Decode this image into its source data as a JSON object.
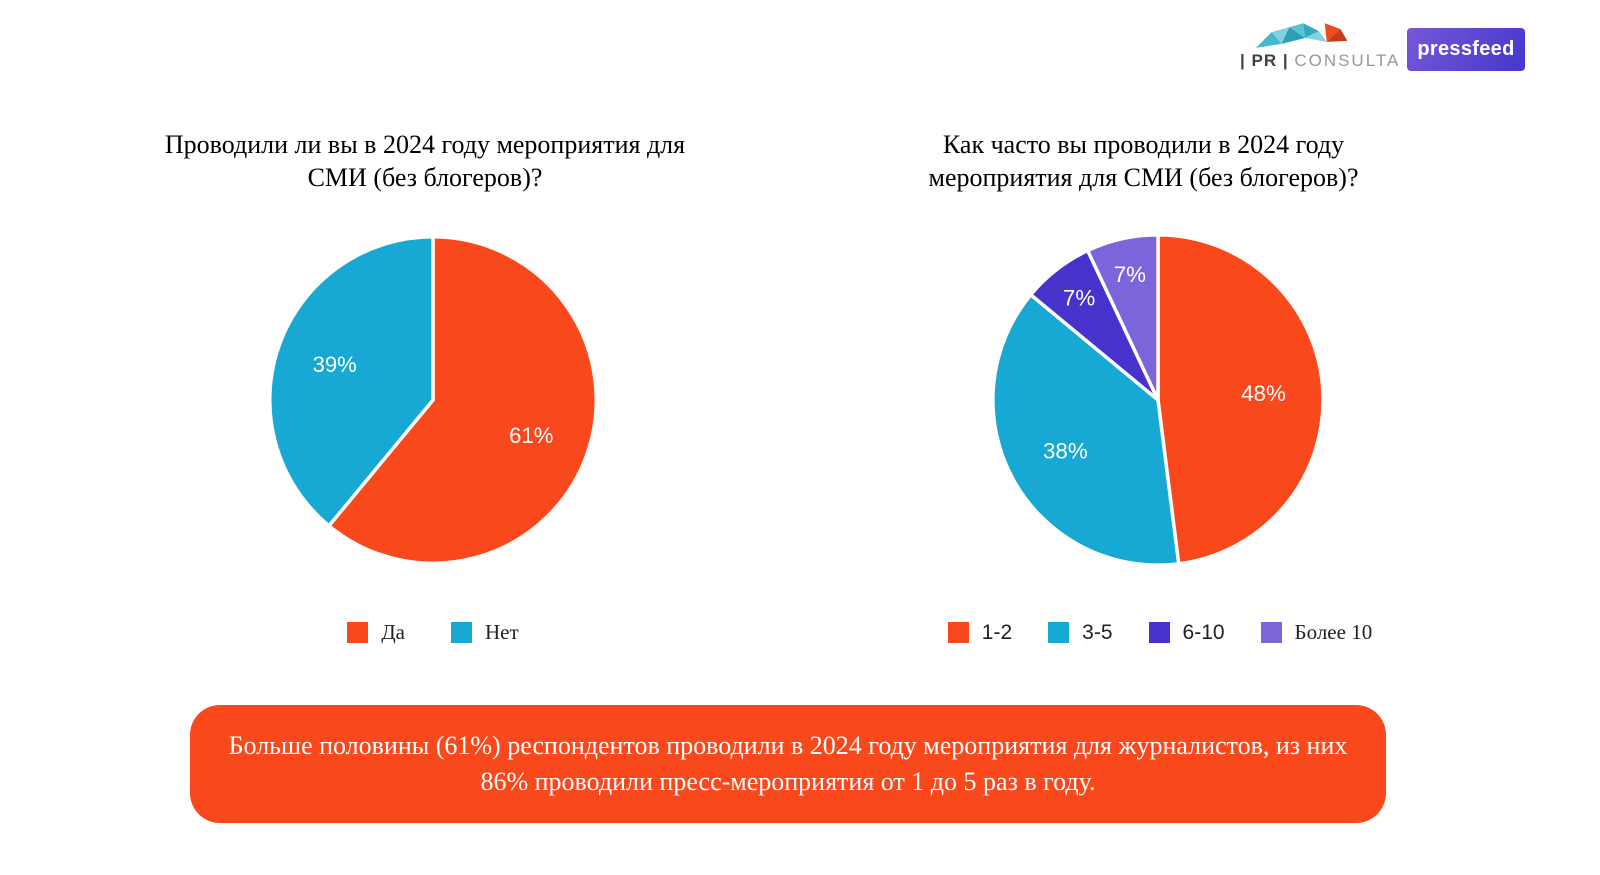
{
  "header": {
    "pr_consulta": {
      "pr_block": "| PR |",
      "name": "CONSULTA"
    },
    "pressfeed": {
      "label": "pressfeed",
      "bg_top": "#7857D8",
      "bg_bottom": "#4338CE"
    }
  },
  "chart_data": [
    {
      "type": "pie",
      "title": "Проводили ли вы в 2024 году мероприятия для СМИ (без блогеров)?",
      "labels": [
        "Да",
        "Нет"
      ],
      "values": [
        61,
        39
      ],
      "data_labels": [
        "61%",
        "39%"
      ],
      "colors": [
        "#F8481C",
        "#17A9D4"
      ],
      "start_angle_deg": 0,
      "direction": "clockwise",
      "legend_position": "bottom"
    },
    {
      "type": "pie",
      "title": "Как часто вы проводили в 2024 году мероприятия для СМИ (без блогеров)?",
      "labels": [
        "1-2",
        "3-5",
        "6-10",
        "Более 10"
      ],
      "values": [
        48,
        38,
        7,
        7
      ],
      "data_labels": [
        "48%",
        "38%",
        "7%",
        "7%"
      ],
      "colors": [
        "#F8481C",
        "#17A9D4",
        "#4733CB",
        "#7C64DB"
      ],
      "start_angle_deg": 0,
      "direction": "clockwise",
      "legend_position": "bottom"
    }
  ],
  "callout": {
    "text": "Больше половины (61%) респондентов проводили в 2024 году мероприятия для журналистов, из них 86% проводили пресс-мероприятия от 1 до 5 раз в году.",
    "bg": "#F8481C",
    "text_color": "#FFFFFF"
  }
}
